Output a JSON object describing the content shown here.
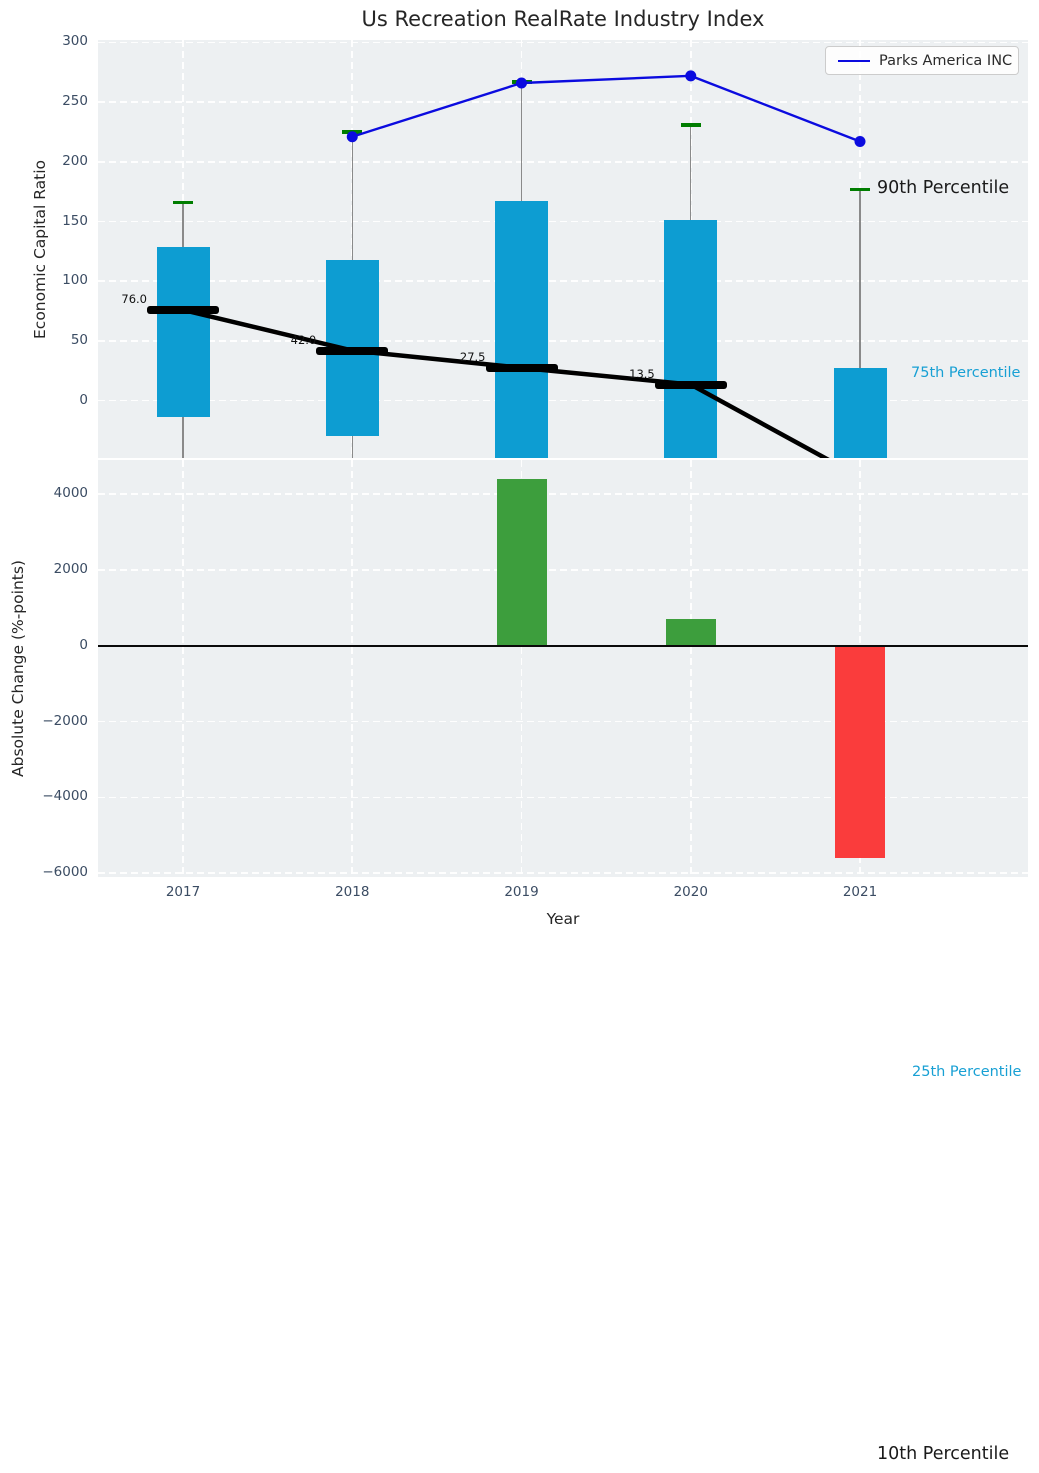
{
  "title": "Us Recreation RealRate Industry Index",
  "legend": {
    "label": "Parks America INC"
  },
  "colors": {
    "background": "#ffffff",
    "plot_background": "#edf0f2",
    "grid": "#ffffff",
    "tick_label": "#3b4c63",
    "title_text": "#262626",
    "bar_blue": "#0d9dd2",
    "percentile_cap_green": "#007d00",
    "company_line_blue": "#0b0bdf",
    "median_black": "#000000",
    "whisker_gray": "#8a8a8a",
    "change_positive_green": "#3d9e3d",
    "change_negative_red": "#fa3c3c",
    "percentile_label_cyan": "#18a0d4",
    "annotation_black": "#1a1a1a"
  },
  "chart_data": [
    {
      "type": "box-line",
      "axis": "top",
      "title": "Us Recreation RealRate Industry Index",
      "ylabel": "Economic Capital Ratio",
      "ylim": [
        -48,
        302
      ],
      "yticks": [
        0,
        50,
        100,
        150,
        200,
        250,
        300
      ],
      "categories": [
        "2017",
        "2018",
        "2019",
        "2020",
        "2021"
      ],
      "grid": "white-dashed",
      "series": [
        {
          "name": "Parks America INC",
          "type": "line",
          "color_key": "company_line_blue",
          "x": [
            "2018",
            "2019",
            "2020",
            "2021"
          ],
          "values": [
            221,
            266,
            272,
            217
          ]
        },
        {
          "name": "median-trend",
          "type": "line-with-caps",
          "color_key": "median_black",
          "x": [
            "2017",
            "2018",
            "2019",
            "2020",
            "2021"
          ],
          "values": [
            76.0,
            42.0,
            27.5,
            13.5,
            -64
          ],
          "point_labels": [
            "76.0",
            "42.0",
            "27.5",
            "13.5",
            ""
          ]
        },
        {
          "name": "percentile-range-75-25",
          "type": "bar",
          "color_key": "bar_blue",
          "x": [
            "2017",
            "2018",
            "2019",
            "2020",
            "2021"
          ],
          "top_values": [
            129,
            118,
            167,
            151,
            27
          ],
          "bottom_values": [
            -14,
            -30,
            null,
            null,
            -563
          ],
          "note": "null or below-axis bottoms are clipped at the axis edge"
        },
        {
          "name": "percentile-90-caps",
          "type": "cap",
          "color_key": "percentile_cap_green",
          "x": [
            "2017",
            "2018",
            "2019",
            "2020",
            "2021"
          ],
          "values": [
            166,
            225,
            267,
            231,
            177
          ]
        }
      ],
      "annotations": [
        {
          "text": "90th Percentile",
          "value": 177,
          "color_key": "annotation_black",
          "size": 17.5,
          "dx": 17
        },
        {
          "text": "75th Percentile",
          "value": 22,
          "color_key": "percentile_label_cyan",
          "size": 14.5,
          "dx": 51
        },
        {
          "text": "25th Percentile",
          "value": -563,
          "color_key": "percentile_label_cyan",
          "size": 14.5,
          "dx": 52
        },
        {
          "text": "10th Percentile",
          "value": -883,
          "color_key": "annotation_black",
          "size": 17.5,
          "dx": 17
        }
      ],
      "legend": {
        "position": "upper right",
        "entries": [
          {
            "label": "Parks America INC",
            "color_key": "company_line_blue"
          }
        ]
      }
    },
    {
      "type": "bar",
      "axis": "bottom",
      "ylabel": "Absolute Change (%-points)",
      "xlabel": "Year",
      "ylim": [
        -6100,
        4900
      ],
      "yticks": [
        -6000,
        -4000,
        -2000,
        0,
        2000,
        4000
      ],
      "categories": [
        "2017",
        "2018",
        "2019",
        "2020",
        "2021"
      ],
      "values": [
        null,
        null,
        4400,
        700,
        -5600
      ],
      "bar_color_keys": [
        null,
        null,
        "change_positive_green",
        "change_positive_green",
        "change_negative_red"
      ],
      "zero_line": true,
      "grid": "white-dashed"
    }
  ]
}
